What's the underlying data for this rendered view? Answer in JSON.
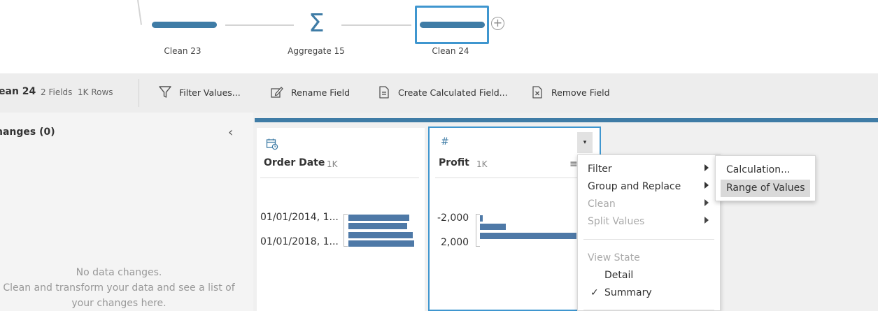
{
  "flow": {
    "steps": [
      {
        "label": "Clean 23"
      },
      {
        "label": "Aggregate 15"
      },
      {
        "label": "Clean 24"
      }
    ]
  },
  "toolbar": {
    "title": "ean 24",
    "meta": "2 Fields  1K Rows",
    "filter_values": "Filter Values...",
    "rename_field": "Rename Field",
    "create_calculated_field": "Create Calculated Field...",
    "remove_field": "Remove Field"
  },
  "changes_pane": {
    "title": "nanges (0)",
    "empty_line1": "No data changes.",
    "empty_line2": "Clean and transform your data and see a list of",
    "empty_line3": "your changes here."
  },
  "profile": {
    "fields": [
      {
        "name": "Order Date",
        "count": "1K",
        "type_icon": "calendar-icon",
        "axis_labels": [
          "01/01/2014, 1...",
          "01/01/2018, 1..."
        ],
        "bar_fractions": [
          0.95,
          0.91,
          1.0,
          1.02
        ]
      },
      {
        "name": "Profit",
        "count": "1K",
        "type_icon": "number-hash-icon",
        "axis_labels": [
          "-2,000",
          "2,000"
        ],
        "bar_fractions": [
          0.03,
          0.27,
          1.0,
          0.0
        ]
      }
    ]
  },
  "context_menu": {
    "items": [
      {
        "label": "Filter",
        "has_submenu": true,
        "enabled": true
      },
      {
        "label": "Group and Replace",
        "has_submenu": true,
        "enabled": true
      },
      {
        "label": "Clean",
        "has_submenu": true,
        "enabled": false
      },
      {
        "label": "Split Values",
        "has_submenu": true,
        "enabled": false
      }
    ],
    "view_state_header": "View State",
    "view_state_options": [
      {
        "label": "Detail",
        "checked": false
      },
      {
        "label": "Summary",
        "checked": true
      }
    ],
    "check_mark": "✓"
  },
  "filter_submenu": {
    "items": [
      {
        "label": "Calculation..."
      },
      {
        "label": "Range of Values",
        "highlighted": true
      }
    ]
  },
  "colors": {
    "accent": "#3f7ca6",
    "selected_border": "#3f96cf",
    "bar": "#4e79a7",
    "toolbar_bg": "#ededed"
  }
}
